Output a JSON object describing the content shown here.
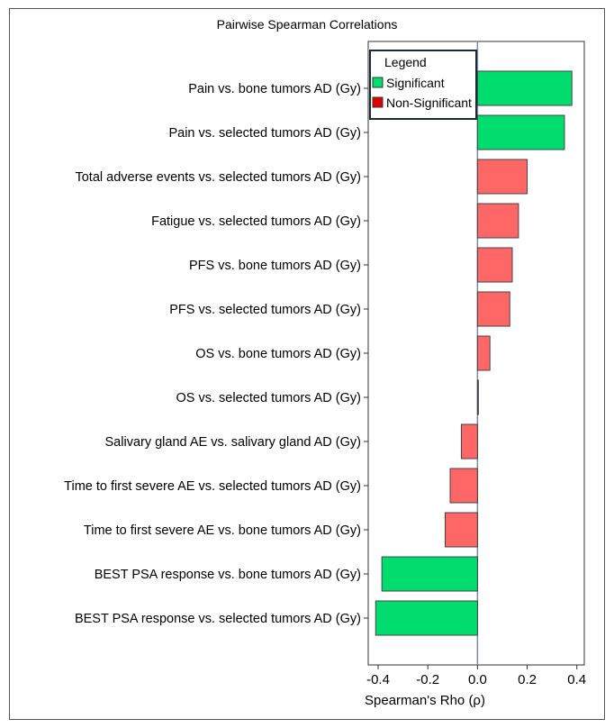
{
  "chart_data": {
    "type": "bar",
    "orientation": "horizontal",
    "title": "Pairwise Spearman Correlations",
    "xlabel": "Spearman's Rho (ρ)",
    "ylabel": "",
    "xlim": [
      -0.44,
      0.43
    ],
    "xticks": [
      -0.4,
      -0.2,
      0.0,
      0.2,
      0.4
    ],
    "xtick_labels": [
      "-0.4",
      "-0.2",
      "0.0",
      "0.2",
      "0.4"
    ],
    "grid": false,
    "legend": {
      "title": "Legend",
      "placement": "top-center",
      "entries": [
        {
          "label": "Significant",
          "color": "#00dd6e"
        },
        {
          "label": "Non-Significant",
          "color": "#dd0000"
        }
      ]
    },
    "colors": {
      "significant": "#00dd6e",
      "non_significant": "#ff6666"
    },
    "categories": [
      "Pain vs. bone tumors AD (Gy)",
      "Pain vs. selected tumors AD (Gy)",
      "Total adverse events vs. selected tumors AD (Gy)",
      "Fatigue vs. selected tumors AD (Gy)",
      "PFS vs. bone tumors AD (Gy)",
      "PFS vs. selected tumors AD (Gy)",
      "OS vs. bone tumors AD (Gy)",
      "OS vs. selected tumors AD (Gy)",
      "Salivary gland AE vs. salivary gland AD (Gy)",
      "Time to first severe AE vs. selected tumors AD (Gy)",
      "Time to first severe AE vs. bone tumors AD (Gy)",
      "BEST PSA response vs. bone tumors AD (Gy)",
      "BEST PSA response vs. selected tumors AD (Gy)"
    ],
    "values": [
      0.38,
      0.35,
      0.2,
      0.165,
      0.14,
      0.13,
      0.05,
      0.0,
      -0.065,
      -0.11,
      -0.13,
      -0.385,
      -0.41
    ],
    "significant": [
      true,
      true,
      false,
      false,
      false,
      false,
      false,
      false,
      false,
      false,
      false,
      true,
      true
    ]
  }
}
